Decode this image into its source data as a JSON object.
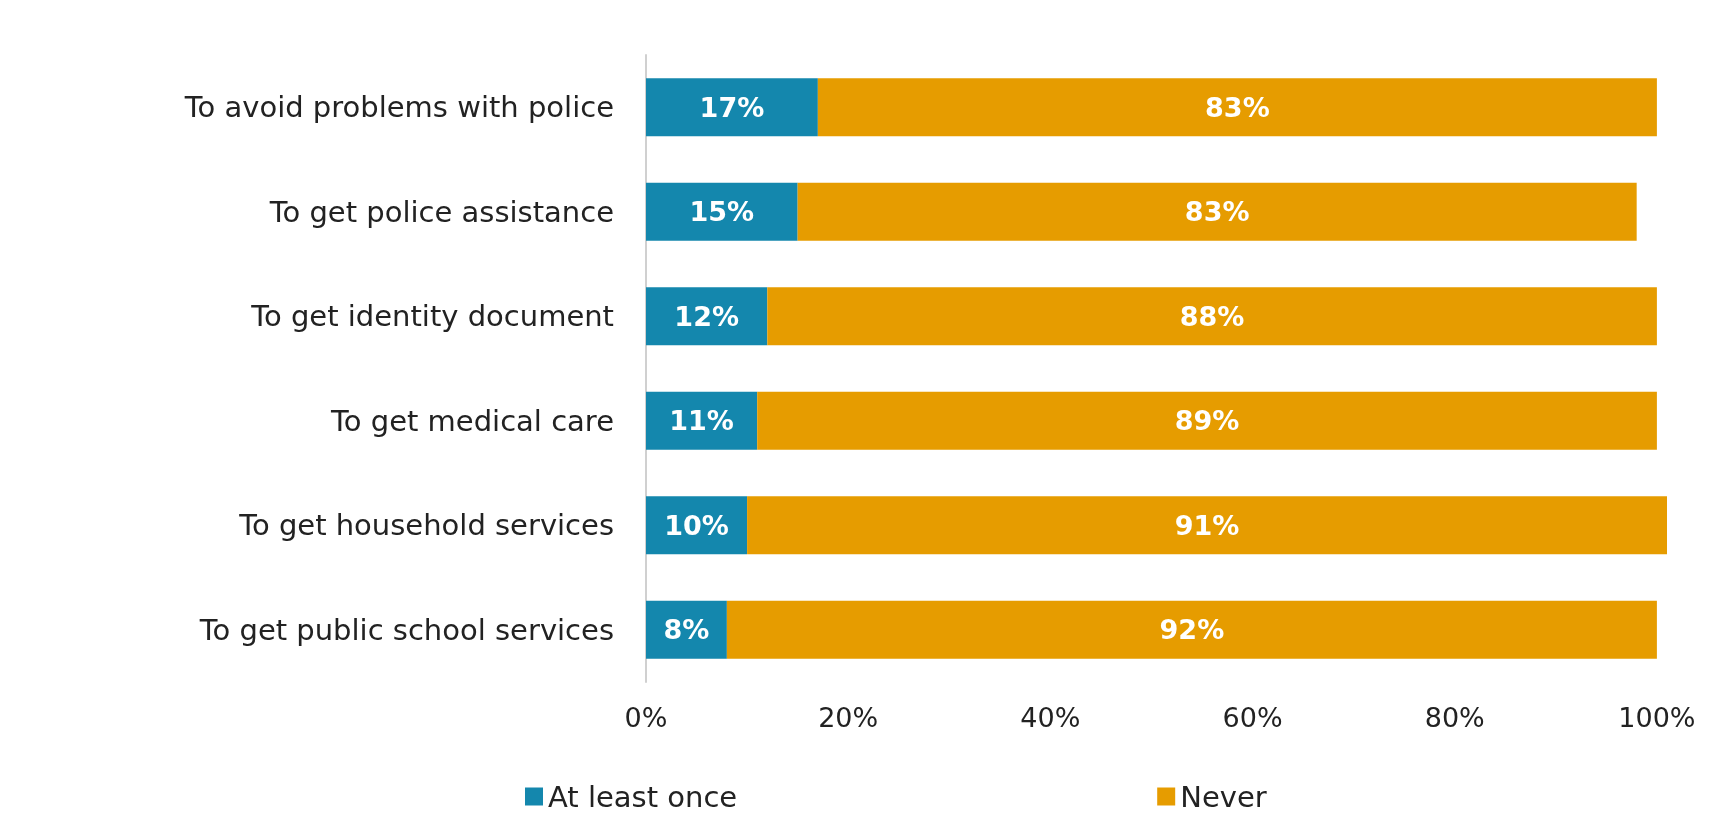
{
  "chart_data": {
    "type": "bar",
    "orientation": "horizontal",
    "stacked": true,
    "categories": [
      "To avoid problems with police",
      "To get police assistance",
      "To get identity document",
      "To get medical care",
      "To get household services",
      "To get public school services"
    ],
    "series": [
      {
        "name": "At least once",
        "color": "#1487ad",
        "values": [
          17,
          15,
          12,
          11,
          10,
          8
        ],
        "value_labels": [
          "17%",
          "15%",
          "12%",
          "11%",
          "10%",
          "8%"
        ]
      },
      {
        "name": "Never",
        "color": "#e69c00",
        "values": [
          83,
          83,
          88,
          89,
          91,
          92
        ],
        "value_labels": [
          "83%",
          "83%",
          "88%",
          "89%",
          "91%",
          "92%"
        ]
      }
    ],
    "xlim": [
      0,
      101
    ],
    "xticks": [
      {
        "value": 0,
        "label": "0%"
      },
      {
        "value": 20,
        "label": "20%"
      },
      {
        "value": 40,
        "label": "40%"
      },
      {
        "value": 60,
        "label": "60%"
      },
      {
        "value": 80,
        "label": "80%"
      },
      {
        "value": 100,
        "label": "100%"
      }
    ],
    "grid": false,
    "legend": "bottom"
  }
}
